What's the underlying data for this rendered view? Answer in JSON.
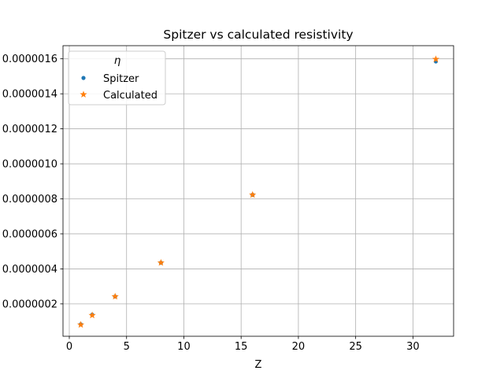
{
  "chart_data": {
    "type": "scatter",
    "title": "Spitzer vs calculated resistivity",
    "xlabel": "Z",
    "ylabel": "",
    "xlim": [
      -0.55,
      33.55
    ],
    "ylim": [
      1.5e-08,
      1.675e-06
    ],
    "x_ticks": [
      0,
      5,
      10,
      15,
      20,
      25,
      30
    ],
    "x_tick_labels": [
      "0",
      "5",
      "10",
      "15",
      "20",
      "25",
      "30"
    ],
    "y_ticks": [
      2e-07,
      4e-07,
      6e-07,
      8e-07,
      1e-06,
      1.2e-06,
      1.4e-06,
      1.6e-06
    ],
    "y_tick_labels": [
      "0.0000002",
      "0.0000004",
      "0.0000006",
      "0.0000008",
      "0.0000010",
      "0.0000012",
      "0.0000014",
      "0.0000016"
    ],
    "grid": true,
    "legend": {
      "title": "η",
      "position": "upper-left"
    },
    "series": [
      {
        "name": "Spitzer",
        "marker": "circle",
        "color": "#1f77b4",
        "x": [
          1,
          2,
          4,
          8,
          16,
          32
        ],
        "y": [
          8.3e-08,
          1.38e-07,
          2.42e-07,
          4.35e-07,
          8.23e-07,
          1.585e-06
        ]
      },
      {
        "name": "Calculated",
        "marker": "star",
        "color": "#ff7f0e",
        "x": [
          1,
          2,
          4,
          8,
          16,
          32
        ],
        "y": [
          8.1e-08,
          1.35e-07,
          2.42e-07,
          4.35e-07,
          8.23e-07,
          1.598e-06
        ]
      }
    ]
  }
}
